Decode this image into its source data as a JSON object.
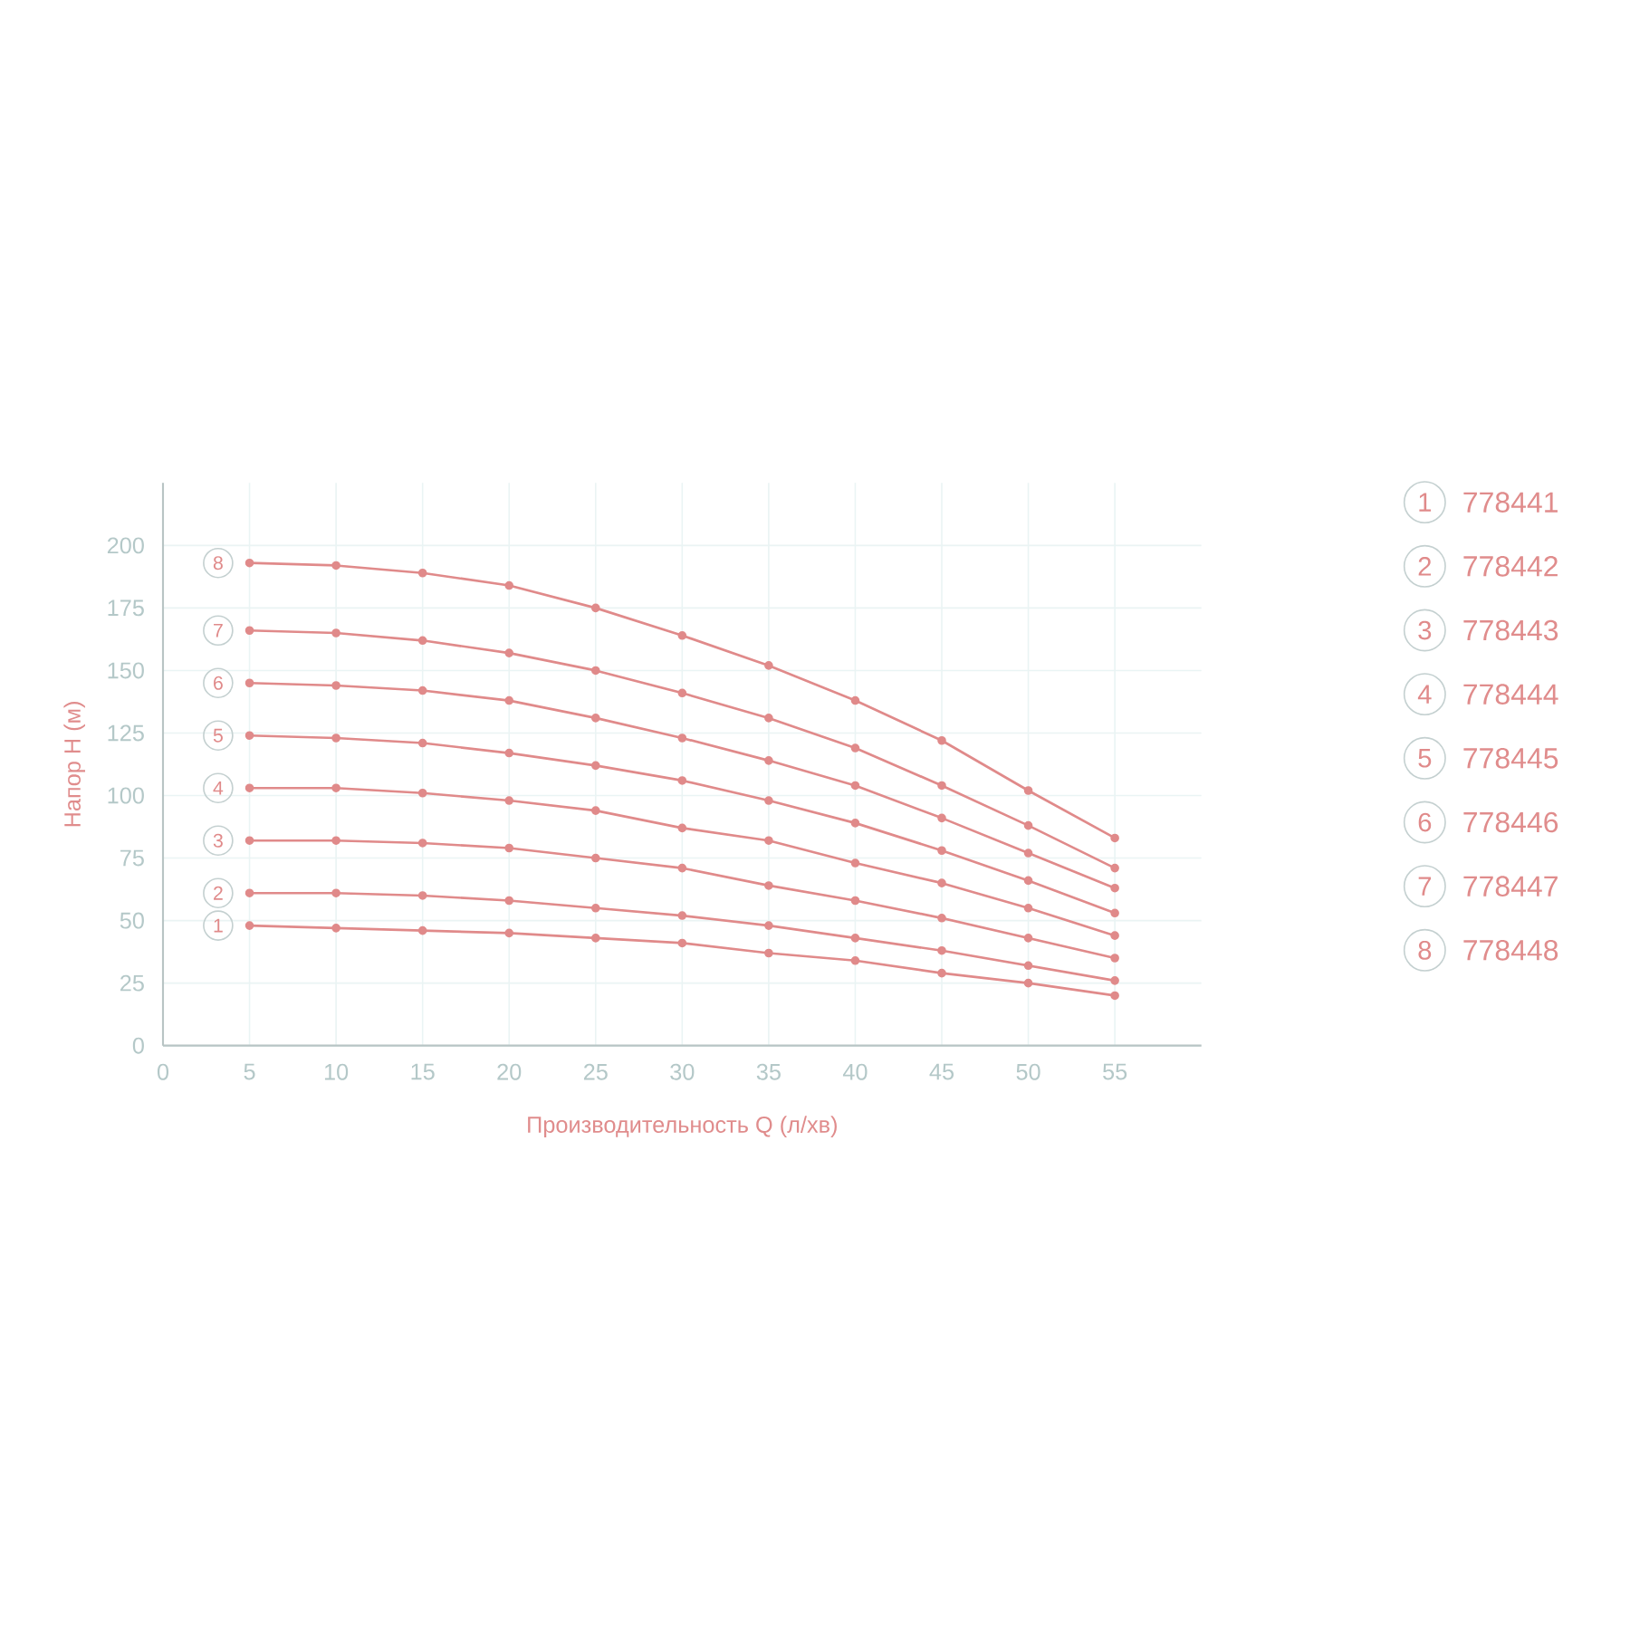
{
  "chart_data": {
    "type": "line",
    "xlabel": "Производительность Q (л/хв)",
    "ylabel": "Напор H (м)",
    "x": [
      5,
      10,
      15,
      20,
      25,
      30,
      35,
      40,
      45,
      50,
      55
    ],
    "xlim": [
      0,
      60
    ],
    "xticks": [
      0,
      5,
      10,
      15,
      20,
      25,
      30,
      35,
      40,
      45,
      50,
      55
    ],
    "ylim": [
      0,
      225
    ],
    "yticks": [
      0,
      25,
      50,
      75,
      100,
      125,
      150,
      175,
      200
    ],
    "grid": true,
    "marker": "circle",
    "line_style": "solid",
    "series": [
      {
        "name": "1",
        "color": "#e08a8a",
        "values": [
          48,
          47,
          46,
          45,
          43,
          41,
          37,
          34,
          29,
          25,
          20
        ]
      },
      {
        "name": "2",
        "color": "#e08a8a",
        "values": [
          61,
          61,
          60,
          58,
          55,
          52,
          48,
          43,
          38,
          32,
          26
        ]
      },
      {
        "name": "3",
        "color": "#e08a8a",
        "values": [
          82,
          82,
          81,
          79,
          75,
          71,
          64,
          58,
          51,
          43,
          35
        ]
      },
      {
        "name": "4",
        "color": "#e08a8a",
        "values": [
          103,
          103,
          101,
          98,
          94,
          87,
          82,
          73,
          65,
          55,
          44
        ]
      },
      {
        "name": "5",
        "color": "#e08a8a",
        "values": [
          124,
          123,
          121,
          117,
          112,
          106,
          98,
          89,
          78,
          66,
          53
        ]
      },
      {
        "name": "6",
        "color": "#e08a8a",
        "values": [
          145,
          144,
          142,
          138,
          131,
          123,
          114,
          104,
          91,
          77,
          63
        ]
      },
      {
        "name": "7",
        "color": "#e08a8a",
        "values": [
          166,
          165,
          162,
          157,
          150,
          141,
          131,
          119,
          104,
          88,
          71
        ]
      },
      {
        "name": "8",
        "color": "#e08a8a",
        "values": [
          193,
          192,
          189,
          184,
          175,
          164,
          152,
          138,
          122,
          102,
          83
        ]
      }
    ],
    "annotations": [
      "778441",
      "778442",
      "778443",
      "778444",
      "778445",
      "778446",
      "778447",
      "778448"
    ]
  }
}
